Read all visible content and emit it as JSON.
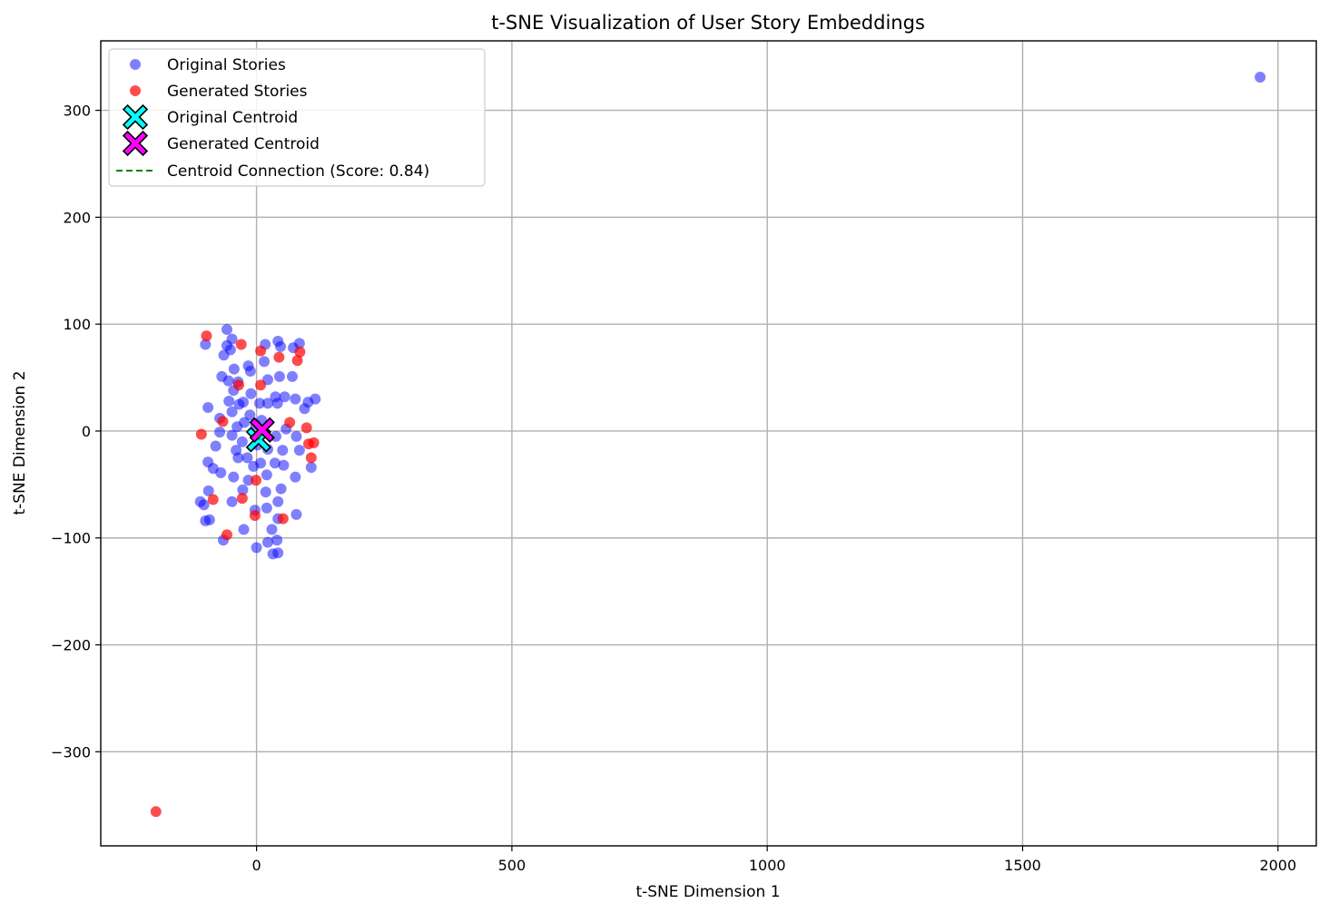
{
  "chart_data": {
    "type": "scatter",
    "title": "t-SNE Visualization of User Story Embeddings",
    "xlabel": "t-SNE Dimension 1",
    "ylabel": "t-SNE Dimension 2",
    "xlim": [
      -305,
      2075
    ],
    "ylim": [
      -388,
      365
    ],
    "xticks": [
      0,
      500,
      1000,
      1500,
      2000
    ],
    "yticks": [
      -300,
      -200,
      -100,
      0,
      100,
      200,
      300
    ],
    "xtick_labels": [
      "0",
      "500",
      "1000",
      "1500",
      "2000"
    ],
    "ytick_labels": [
      "−300",
      "−200",
      "−100",
      "0",
      "100",
      "200",
      "300"
    ],
    "grid": true,
    "legend_position": "top-left",
    "series": [
      {
        "name": "Original Stories",
        "color": "#0000ff",
        "alpha": 0.5,
        "marker": "circle",
        "points": [
          [
            1965,
            331
          ],
          [
            -58,
            95
          ],
          [
            -48,
            86
          ],
          [
            -58,
            80
          ],
          [
            -100,
            81
          ],
          [
            -51,
            76
          ],
          [
            -64,
            71
          ],
          [
            17,
            81
          ],
          [
            42,
            84
          ],
          [
            47,
            79
          ],
          [
            72,
            78
          ],
          [
            84,
            82
          ],
          [
            15,
            65
          ],
          [
            -44,
            58
          ],
          [
            -16,
            61
          ],
          [
            -12,
            56
          ],
          [
            -68,
            51
          ],
          [
            -55,
            47
          ],
          [
            -36,
            46
          ],
          [
            22,
            48
          ],
          [
            45,
            51
          ],
          [
            70,
            51
          ],
          [
            -45,
            38
          ],
          [
            -11,
            35
          ],
          [
            -54,
            28
          ],
          [
            -26,
            27
          ],
          [
            -34,
            25
          ],
          [
            6,
            26
          ],
          [
            22,
            26
          ],
          [
            41,
            26
          ],
          [
            37,
            32
          ],
          [
            55,
            32
          ],
          [
            76,
            30
          ],
          [
            101,
            27
          ],
          [
            115,
            30
          ],
          [
            94,
            21
          ],
          [
            -95,
            22
          ],
          [
            -48,
            18
          ],
          [
            -13,
            15
          ],
          [
            -72,
            12
          ],
          [
            -24,
            8
          ],
          [
            -38,
            4
          ],
          [
            -2,
            6
          ],
          [
            10,
            10
          ],
          [
            -72,
            -1
          ],
          [
            -48,
            -4
          ],
          [
            -28,
            -10
          ],
          [
            2,
            -13
          ],
          [
            38,
            -5
          ],
          [
            58,
            2
          ],
          [
            78,
            -5
          ],
          [
            -80,
            -14
          ],
          [
            -40,
            -18
          ],
          [
            22,
            -17
          ],
          [
            51,
            -18
          ],
          [
            84,
            -18
          ],
          [
            -95,
            -29
          ],
          [
            -85,
            -35
          ],
          [
            -36,
            -25
          ],
          [
            -18,
            -25
          ],
          [
            8,
            -30
          ],
          [
            -6,
            -33
          ],
          [
            36,
            -30
          ],
          [
            53,
            -32
          ],
          [
            107,
            -34
          ],
          [
            -70,
            -39
          ],
          [
            -45,
            -43
          ],
          [
            -16,
            -46
          ],
          [
            20,
            -41
          ],
          [
            76,
            -43
          ],
          [
            -27,
            -55
          ],
          [
            -94,
            -56
          ],
          [
            18,
            -57
          ],
          [
            48,
            -54
          ],
          [
            -110,
            -66
          ],
          [
            -103,
            -69
          ],
          [
            -48,
            -66
          ],
          [
            42,
            -66
          ],
          [
            -3,
            -74
          ],
          [
            20,
            -72
          ],
          [
            78,
            -78
          ],
          [
            -100,
            -84
          ],
          [
            -92,
            -83
          ],
          [
            42,
            -82
          ],
          [
            -25,
            -92
          ],
          [
            30,
            -92
          ],
          [
            -65,
            -102
          ],
          [
            22,
            -104
          ],
          [
            40,
            -102
          ],
          [
            0,
            -109
          ],
          [
            32,
            -115
          ],
          [
            42,
            -114
          ]
        ]
      },
      {
        "name": "Generated Stories",
        "color": "#ff0000",
        "alpha": 0.7,
        "marker": "circle",
        "points": [
          [
            -98,
            89
          ],
          [
            -30,
            81
          ],
          [
            8,
            75
          ],
          [
            44,
            69
          ],
          [
            85,
            74
          ],
          [
            80,
            66
          ],
          [
            -35,
            43
          ],
          [
            8,
            43
          ],
          [
            -66,
            9
          ],
          [
            65,
            8
          ],
          [
            98,
            3
          ],
          [
            -108,
            -3
          ],
          [
            102,
            -12
          ],
          [
            112,
            -11
          ],
          [
            107,
            -25
          ],
          [
            -1,
            -46
          ],
          [
            -28,
            -63
          ],
          [
            -85,
            -64
          ],
          [
            -3,
            -79
          ],
          [
            52,
            -82
          ],
          [
            -58,
            -97
          ],
          [
            -197,
            -356
          ]
        ]
      },
      {
        "name": "Original Centroid",
        "color": "#00ffff",
        "marker": "x-filled",
        "points": [
          [
            4,
            -8
          ]
        ]
      },
      {
        "name": "Generated Centroid",
        "color": "#ff00ff",
        "marker": "x-filled",
        "points": [
          [
            11,
            1
          ]
        ]
      },
      {
        "name": "Centroid Connection (Score: 0.84)",
        "color": "#008000",
        "marker": "dashed-line",
        "points": [
          [
            4,
            -8
          ],
          [
            11,
            1
          ]
        ]
      }
    ]
  }
}
